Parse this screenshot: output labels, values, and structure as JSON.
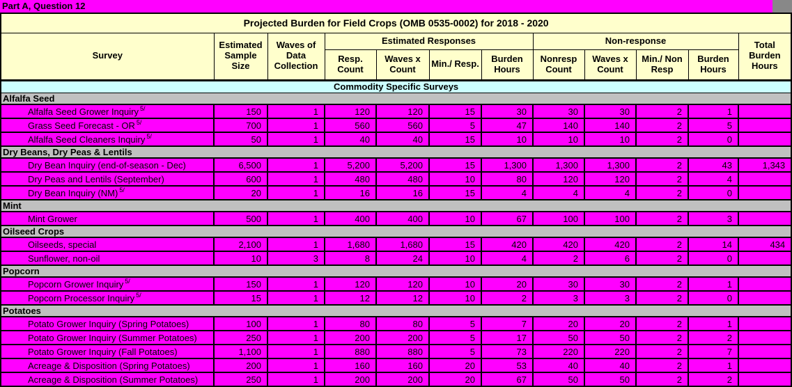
{
  "window": {
    "title_bar": "Part A, Question 12"
  },
  "colors": {
    "title_bar_bg": "#ff00ff",
    "header_bg": "#ffffcc",
    "banner_bg": "#ccffff",
    "section_bg": "#c0c0c0",
    "data_row_bg": "#ff00ff",
    "grid": "#000000"
  },
  "table": {
    "title": "Projected Burden for Field Crops (OMB 0535-0002) for 2018 - 2020",
    "columns": {
      "survey": "Survey",
      "sample_size": "Estimated Sample Size",
      "waves": "Waves of Data Collection",
      "est_responses_group": "Estimated Responses",
      "resp_count": "Resp. Count",
      "waves_x_count": "Waves x Count",
      "min_resp": "Min./ Resp.",
      "burden_hours": "Burden Hours",
      "nonresponse_group": "Non-response",
      "nonresp_count": "Nonresp Count",
      "nr_waves_x_count": "Waves x Count",
      "min_nonresp": "Min./ Non Resp",
      "nr_burden_hours": "Burden Hours",
      "total_burden_hours": "Total Burden Hours"
    },
    "section_banner": "Commodity Specific Surveys",
    "sections": [
      {
        "name": "Alfalfa Seed",
        "rows": [
          {
            "survey": "Alfalfa Seed Grower Inquiry",
            "footnote": "5/",
            "values": [
              "150",
              "1",
              "120",
              "120",
              "15",
              "30",
              "30",
              "30",
              "2",
              "1",
              ""
            ]
          },
          {
            "survey": "Grass Seed Forecast - OR",
            "footnote": "5/",
            "values": [
              "700",
              "1",
              "560",
              "560",
              "5",
              "47",
              "140",
              "140",
              "2",
              "5",
              ""
            ]
          },
          {
            "survey": "Alfalfa Seed Cleaners Inquiry",
            "footnote": "5/",
            "values": [
              "50",
              "1",
              "40",
              "40",
              "15",
              "10",
              "10",
              "10",
              "2",
              "0",
              ""
            ]
          }
        ]
      },
      {
        "name": "Dry Beans, Dry Peas & Lentils",
        "rows": [
          {
            "survey": "Dry Bean Inquiry (end-of-season - Dec)",
            "footnote": "",
            "values": [
              "6,500",
              "1",
              "5,200",
              "5,200",
              "15",
              "1,300",
              "1,300",
              "1,300",
              "2",
              "43",
              "1,343"
            ]
          },
          {
            "survey": "Dry Peas and Lentils (September)",
            "footnote": "",
            "values": [
              "600",
              "1",
              "480",
              "480",
              "10",
              "80",
              "120",
              "120",
              "2",
              "4",
              ""
            ]
          },
          {
            "survey": "Dry Bean Inquiry (NM)",
            "footnote": "5/",
            "values": [
              "20",
              "1",
              "16",
              "16",
              "15",
              "4",
              "4",
              "4",
              "2",
              "0",
              ""
            ]
          }
        ]
      },
      {
        "name": "Mint",
        "rows": [
          {
            "survey": "Mint Grower",
            "footnote": "",
            "values": [
              "500",
              "1",
              "400",
              "400",
              "10",
              "67",
              "100",
              "100",
              "2",
              "3",
              ""
            ]
          }
        ]
      },
      {
        "name": "Oilseed Crops",
        "rows": [
          {
            "survey": "Oilseeds, special",
            "footnote": "",
            "values": [
              "2,100",
              "1",
              "1,680",
              "1,680",
              "15",
              "420",
              "420",
              "420",
              "2",
              "14",
              "434"
            ]
          },
          {
            "survey": "Sunflower, non-oil",
            "footnote": "",
            "values": [
              "10",
              "3",
              "8",
              "24",
              "10",
              "4",
              "2",
              "6",
              "2",
              "0",
              ""
            ]
          }
        ]
      },
      {
        "name": "Popcorn",
        "rows": [
          {
            "survey": "Popcorn Grower Inquiry",
            "footnote": "5/",
            "values": [
              "150",
              "1",
              "120",
              "120",
              "10",
              "20",
              "30",
              "30",
              "2",
              "1",
              ""
            ]
          },
          {
            "survey": "Popcorn Processor Inquiry",
            "footnote": "5/",
            "values": [
              "15",
              "1",
              "12",
              "12",
              "10",
              "2",
              "3",
              "3",
              "2",
              "0",
              ""
            ]
          }
        ]
      },
      {
        "name": "Potatoes",
        "rows": [
          {
            "survey": "Potato Grower Inquiry (Spring Potatoes)",
            "footnote": "",
            "values": [
              "100",
              "1",
              "80",
              "80",
              "5",
              "7",
              "20",
              "20",
              "2",
              "1",
              ""
            ]
          },
          {
            "survey": "Potato Grower Inquiry (Summer Potatoes)",
            "footnote": "",
            "values": [
              "250",
              "1",
              "200",
              "200",
              "5",
              "17",
              "50",
              "50",
              "2",
              "2",
              ""
            ]
          },
          {
            "survey": "Potato Grower Inquiry (Fall Potatoes)",
            "footnote": "",
            "values": [
              "1,100",
              "1",
              "880",
              "880",
              "5",
              "73",
              "220",
              "220",
              "2",
              "7",
              ""
            ]
          },
          {
            "survey": "Acreage & Disposition (Spring Potatoes)",
            "footnote": "",
            "values": [
              "200",
              "1",
              "160",
              "160",
              "20",
              "53",
              "40",
              "40",
              "2",
              "1",
              ""
            ]
          },
          {
            "survey": "Acreage & Disposition (Summer Potatoes)",
            "footnote": "",
            "values": [
              "250",
              "1",
              "200",
              "200",
              "20",
              "67",
              "50",
              "50",
              "2",
              "2",
              ""
            ]
          }
        ]
      }
    ]
  }
}
